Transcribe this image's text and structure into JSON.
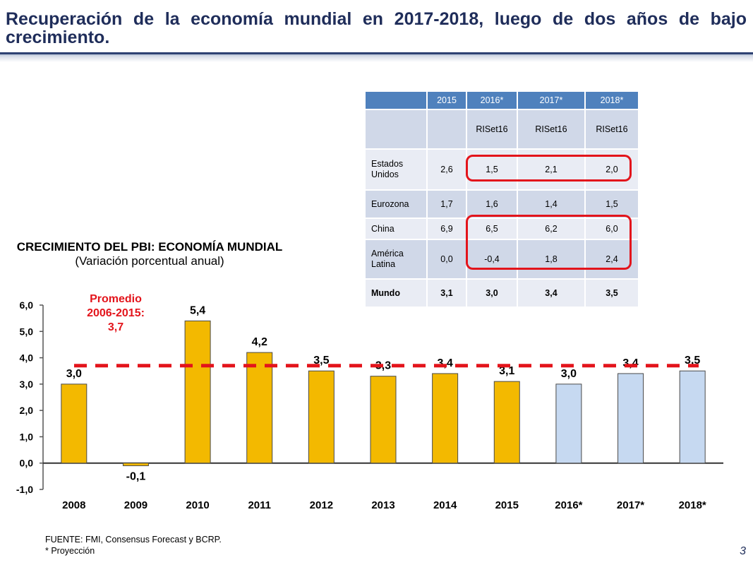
{
  "slide": {
    "title": "Recuperación de la economía mundial en 2017-2018, luego de dos años de bajo crecimiento.",
    "page_number": "3"
  },
  "chart_heading": {
    "title": "CRECIMIENTO DEL PBI: ECONOMÍA MUNDIAL",
    "subtitle": "(Variación porcentual anual)"
  },
  "average_label": [
    "Promedio",
    "2006-2015:",
    "3,7"
  ],
  "chart_data": {
    "type": "bar",
    "title": "CRECIMIENTO DEL PBI: ECONOMÍA MUNDIAL",
    "subtitle": "(Variación porcentual anual)",
    "categories": [
      "2008",
      "2009",
      "2010",
      "2011",
      "2012",
      "2013",
      "2014",
      "2015",
      "2016*",
      "2017*",
      "2018*"
    ],
    "values": [
      3.0,
      -0.1,
      5.4,
      4.2,
      3.5,
      3.3,
      3.4,
      3.1,
      3.0,
      3.4,
      3.5
    ],
    "value_labels": [
      "3,0",
      "-0,1",
      "5,4",
      "4,2",
      "3,5",
      "3,3",
      "3,4",
      "3,1",
      "3,0",
      "3,4",
      "3,5"
    ],
    "projected": [
      false,
      false,
      false,
      false,
      false,
      false,
      false,
      false,
      true,
      true,
      true
    ],
    "yticks": [
      "-1,0",
      "0,0",
      "1,0",
      "2,0",
      "3,0",
      "4,0",
      "5,0",
      "6,0"
    ],
    "ylim": [
      -1,
      6
    ],
    "average_line": 3.7,
    "colors": {
      "actual": "#f3b900",
      "projected": "#c6d9f1",
      "average": "#e3141b",
      "bar_edge": "#4a4a4a"
    },
    "grid": false,
    "legend": "none"
  },
  "table": {
    "headers": [
      "",
      "2015",
      "2016*",
      "2017*",
      "2018*"
    ],
    "subheader": [
      "",
      "",
      "RISet16",
      "RISet16",
      "RISet16"
    ],
    "rows": [
      {
        "name": "Estados Unidos",
        "values": [
          "2,6",
          "1,5",
          "2,1",
          "2,0"
        ]
      },
      {
        "name": "Eurozona",
        "values": [
          "1,7",
          "1,6",
          "1,4",
          "1,5"
        ]
      },
      {
        "name": "China",
        "values": [
          "6,9",
          "6,5",
          "6,2",
          "6,0"
        ]
      },
      {
        "name": "América Latina",
        "values": [
          "0,0",
          "-0,4",
          "1,8",
          "2,4"
        ]
      },
      {
        "name": "Mundo",
        "values": [
          "3,1",
          "3,0",
          "3,4",
          "3,5"
        ]
      }
    ]
  },
  "footer": {
    "source": "FUENTE: FMI, Consensus Forecast y BCRP.",
    "note": "* Proyección"
  }
}
